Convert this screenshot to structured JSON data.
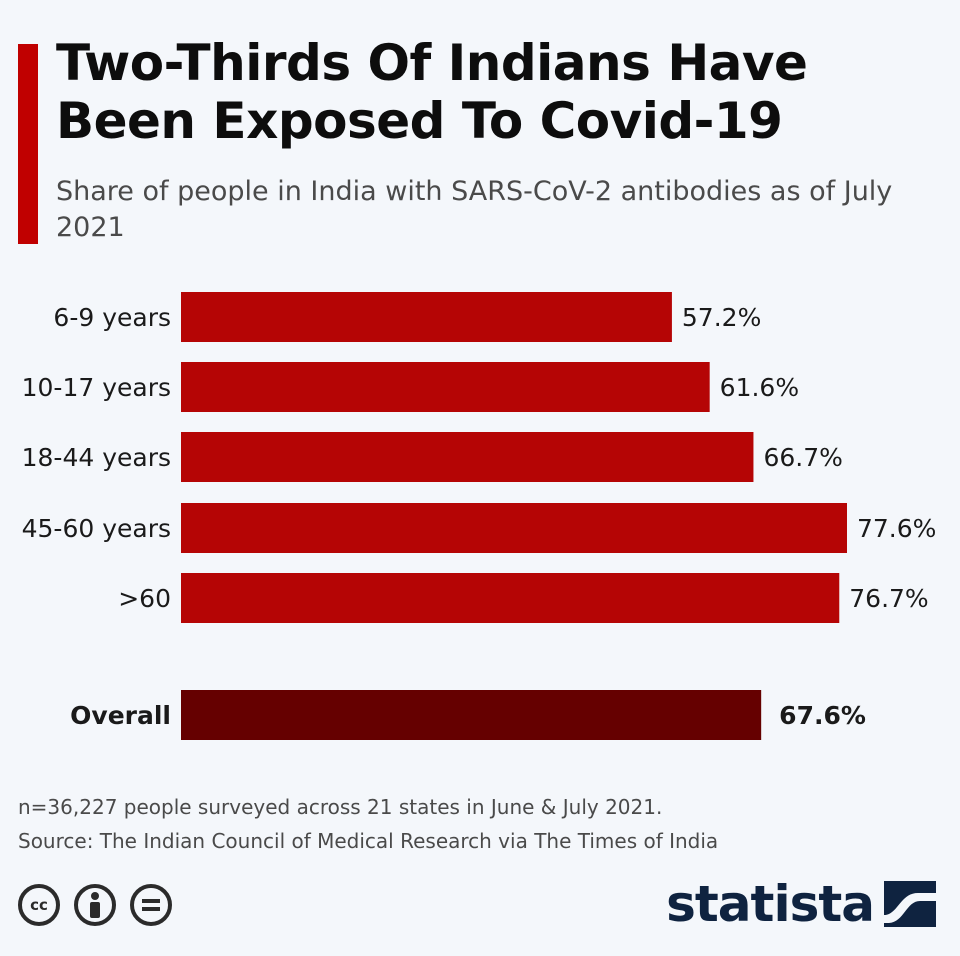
{
  "header": {
    "title": "Two-Thirds Of Indians Have Been Exposed To Covid-19",
    "subtitle": "Share of people in India with SARS-CoV-2 antibodies as of July 2021"
  },
  "chart_data": {
    "type": "bar",
    "orientation": "horizontal",
    "categories": [
      "6-9 years",
      "10-17 years",
      "18-44 years",
      "45-60 years",
      ">60",
      "Overall"
    ],
    "values": [
      57.2,
      61.6,
      66.7,
      77.6,
      76.7,
      67.6
    ],
    "value_labels": [
      "57.2%",
      "61.6%",
      "66.7%",
      "77.6%",
      "76.7%",
      "67.6%"
    ],
    "highlight_category": "Overall",
    "xlim": [
      0,
      77.6
    ],
    "grid": false,
    "colors": {
      "bar": "#b50505",
      "highlight": "#650000"
    }
  },
  "footer": {
    "note": "n=36,227 people surveyed across 21 states in June & July 2021.",
    "source": "Source: The Indian Council of Medical Research via The Times of India",
    "license_icons": [
      "cc-icon",
      "attribution-icon",
      "no-derivatives-icon"
    ],
    "brand": "statista"
  }
}
